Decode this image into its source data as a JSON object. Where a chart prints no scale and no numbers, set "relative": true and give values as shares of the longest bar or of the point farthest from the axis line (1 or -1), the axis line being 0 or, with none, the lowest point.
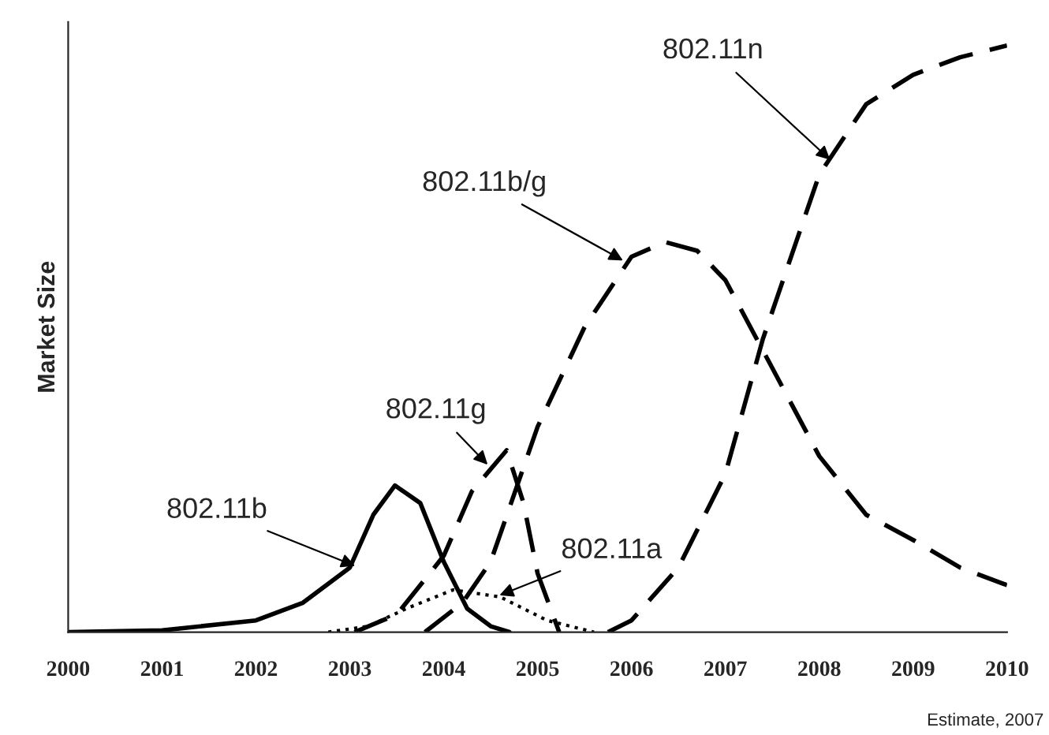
{
  "chart_data": {
    "type": "line",
    "relative": true,
    "ylabel": "Market Size",
    "xlim": [
      2000,
      2010
    ],
    "xticks": [
      2000,
      2001,
      2002,
      2003,
      2004,
      2005,
      2006,
      2007,
      2008,
      2009,
      2010
    ],
    "grid": false,
    "legend": false,
    "marker": "none",
    "series": [
      {
        "color": "#000000",
        "line_style": "solid",
        "x": [
          2000,
          2001,
          2002,
          2002.5,
          2003,
          2003.25,
          2003.48,
          2003.75,
          2004,
          2004.25,
          2004.5,
          2004.7
        ],
        "values": [
          0,
          0.003,
          0.02,
          0.05,
          0.11,
          0.2,
          0.25,
          0.22,
          0.12,
          0.04,
          0.01,
          0
        ]
      },
      {
        "color": "#000000",
        "line_style": "dashed",
        "x": [
          2003.05,
          2003.5,
          2004,
          2004.3,
          2004.67,
          2004.85,
          2005,
          2005.23
        ],
        "values": [
          0,
          0.03,
          0.13,
          0.24,
          0.31,
          0.22,
          0.1,
          0
        ]
      },
      {
        "color": "#000000",
        "line_style": "dotted",
        "x": [
          2002.77,
          2003.2,
          2003.6,
          2004.1,
          2004.6,
          2005.1,
          2005.6
        ],
        "values": [
          0,
          0.01,
          0.04,
          0.072,
          0.06,
          0.02,
          0
        ]
      },
      {
        "color": "#000000",
        "line_style": "dashed",
        "x": [
          2003.8,
          2004.2,
          2004.5,
          2005,
          2005.5,
          2006,
          2006.36,
          2006.7,
          2007,
          2007.5,
          2008,
          2008.5,
          2009,
          2009.5,
          2010
        ],
        "values": [
          0,
          0.05,
          0.12,
          0.35,
          0.52,
          0.64,
          0.665,
          0.65,
          0.6,
          0.45,
          0.3,
          0.2,
          0.157,
          0.11,
          0.08
        ]
      },
      {
        "color": "#000000",
        "line_style": "dashed",
        "x": [
          2005.75,
          2006,
          2006.5,
          2007,
          2007.4,
          2008,
          2008.5,
          2009,
          2009.5,
          2010
        ],
        "values": [
          0,
          0.02,
          0.11,
          0.27,
          0.5,
          0.78,
          0.9,
          0.95,
          0.98,
          1
        ]
      }
    ],
    "annotations": [
      {
        "text": "802.11n",
        "x": 2008.15,
        "y": 0.8
      },
      {
        "text": "802.11b/g",
        "x": 2005.95,
        "y": 0.63
      },
      {
        "text": "802.11g",
        "x": 2004.5,
        "y": 0.28
      },
      {
        "text": "802.11b",
        "x": 2003.1,
        "y": 0.11
      },
      {
        "text": "802.11a",
        "x": 2004.55,
        "y": 0.06
      },
      "Estimate, 2007"
    ]
  }
}
